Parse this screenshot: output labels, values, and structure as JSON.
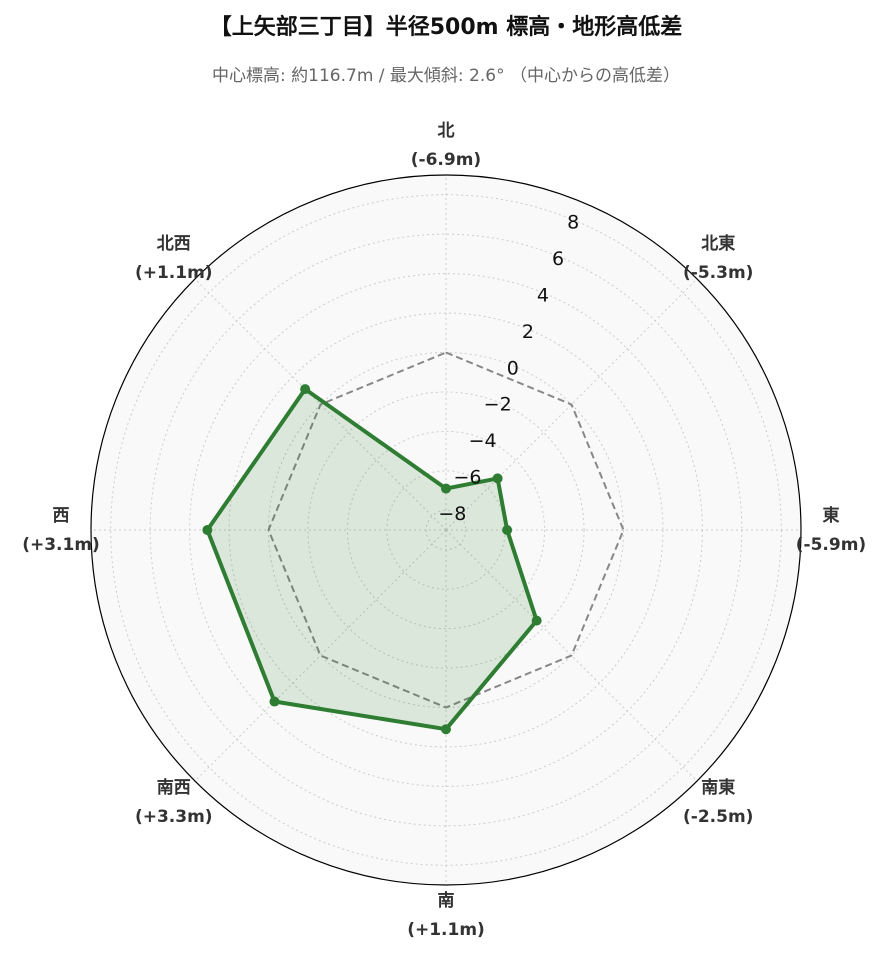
{
  "chart_data": {
    "type": "radar",
    "title": "【上矢部三丁目】半径500m 標高・地形高低差",
    "subtitle": "中心標高: 約116.7m / 最大傾斜: 2.6° （中心からの高低差）",
    "categories": [
      "北",
      "北東",
      "東",
      "南東",
      "南",
      "南西",
      "西",
      "北西"
    ],
    "values": [
      -6.9,
      -5.3,
      -5.9,
      -2.5,
      1.1,
      3.3,
      3.1,
      1.1
    ],
    "value_labels": [
      "(-6.9m)",
      "(-5.3m)",
      "(-5.9m)",
      "(-2.5m)",
      "(+1.1m)",
      "(+3.3m)",
      "(+3.1m)",
      "(+1.1m)"
    ],
    "color": "#2e7d32",
    "reference_line": 0,
    "ylim": [
      -9,
      9
    ],
    "yticks": [
      {
        "value": -8,
        "label": "−8"
      },
      {
        "value": -6,
        "label": "−6"
      },
      {
        "value": -4,
        "label": "−4"
      },
      {
        "value": -2,
        "label": "−2"
      },
      0,
      2,
      4,
      6,
      8
    ],
    "grid": true
  }
}
